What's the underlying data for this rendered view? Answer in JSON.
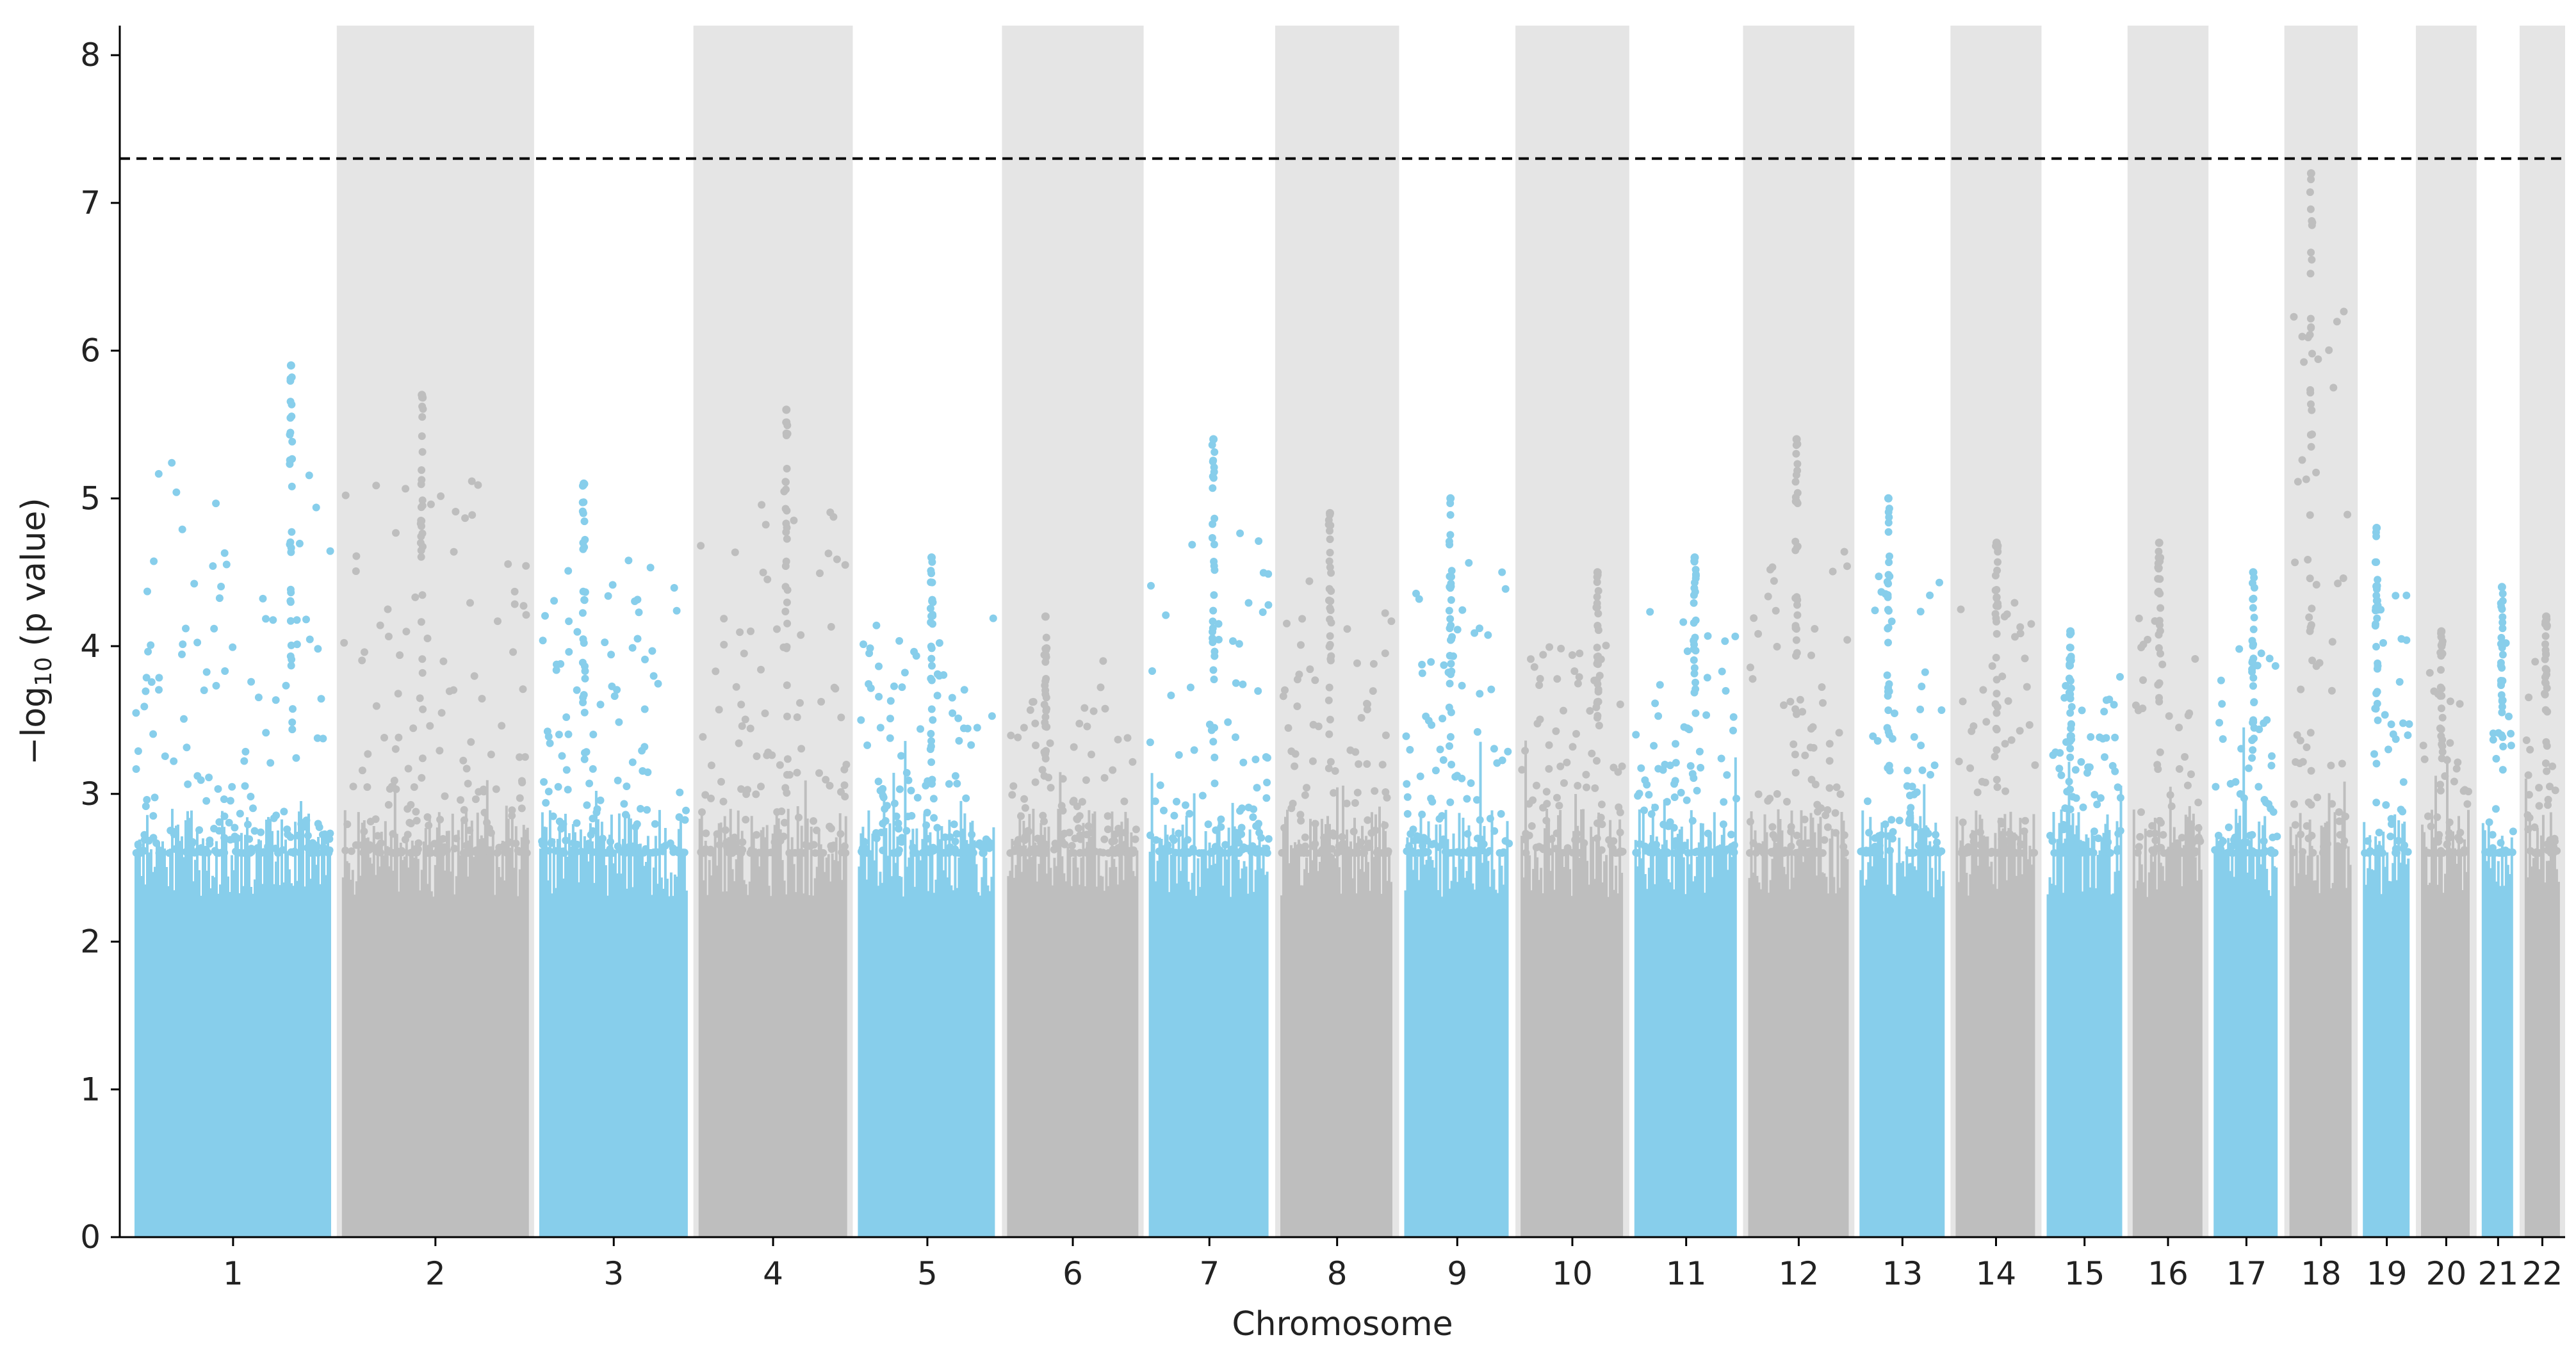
{
  "chart_data": {
    "type": "scatter",
    "subtype": "manhattan",
    "title": "",
    "xlabel": "Chromosome",
    "ylabel_prefix": "−log",
    "ylabel_subscript": "10",
    "ylabel_suffix": " (p value)",
    "ylim": [
      0,
      8.2
    ],
    "yticks": [
      0,
      1,
      2,
      3,
      4,
      5,
      6,
      7,
      8
    ],
    "threshold": 7.3,
    "threshold_style": "dashed",
    "colors": {
      "odd_chromosomes": "#87ceeb",
      "even_chromosomes": "#bebebe",
      "band": "#e5e5e5",
      "threshold_line": "#000000"
    },
    "chromosomes": [
      {
        "label": "1",
        "weight": 8.2,
        "peak": 5.9
      },
      {
        "label": "2",
        "weight": 7.8,
        "peak": 5.7
      },
      {
        "label": "3",
        "weight": 6.3,
        "peak": 5.1
      },
      {
        "label": "4",
        "weight": 6.3,
        "peak": 5.6
      },
      {
        "label": "5",
        "weight": 5.9,
        "peak": 4.6
      },
      {
        "label": "6",
        "weight": 5.6,
        "peak": 4.2
      },
      {
        "label": "7",
        "weight": 5.2,
        "peak": 5.4
      },
      {
        "label": "8",
        "weight": 4.9,
        "peak": 4.9
      },
      {
        "label": "9",
        "weight": 4.6,
        "peak": 5.0
      },
      {
        "label": "10",
        "weight": 4.5,
        "peak": 4.5
      },
      {
        "label": "11",
        "weight": 4.5,
        "peak": 4.6
      },
      {
        "label": "12",
        "weight": 4.4,
        "peak": 5.4
      },
      {
        "label": "13",
        "weight": 3.8,
        "peak": 5.0
      },
      {
        "label": "14",
        "weight": 3.6,
        "peak": 4.7
      },
      {
        "label": "15",
        "weight": 3.4,
        "peak": 4.1
      },
      {
        "label": "16",
        "weight": 3.2,
        "peak": 4.7
      },
      {
        "label": "17",
        "weight": 3.0,
        "peak": 4.5
      },
      {
        "label": "18",
        "weight": 2.9,
        "peak": 7.2
      },
      {
        "label": "19",
        "weight": 2.3,
        "peak": 4.8
      },
      {
        "label": "20",
        "weight": 2.4,
        "peak": 4.1
      },
      {
        "label": "21",
        "weight": 1.7,
        "peak": 4.4
      },
      {
        "label": "22",
        "weight": 1.8,
        "peak": 4.2
      }
    ]
  }
}
